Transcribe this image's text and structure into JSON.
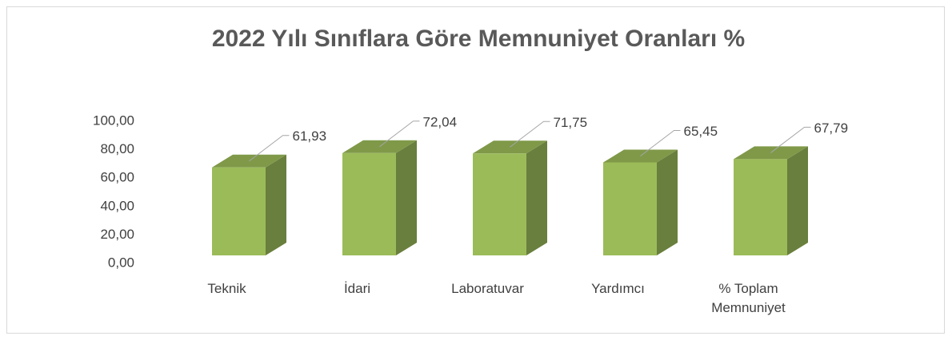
{
  "chart_data": {
    "type": "bar3d",
    "title": "2022 Yılı Sınıflara Göre Memnuniyet Oranları  %",
    "categories": [
      "Teknik",
      "İdari",
      "Laboratuvar",
      "Yardımcı",
      "% Toplam Memnuniyet"
    ],
    "values": [
      61.93,
      72.04,
      71.75,
      65.45,
      67.79
    ],
    "value_labels": [
      "61,93",
      "72,04",
      "71,75",
      "65,45",
      "67,79"
    ],
    "color": "#9bbb59",
    "ylim": [
      0,
      100
    ],
    "yticks": [
      {
        "value": 0,
        "label": "0,00"
      },
      {
        "value": 20,
        "label": "20,00"
      },
      {
        "value": 40,
        "label": "40,00"
      },
      {
        "value": 60,
        "label": "60,00"
      },
      {
        "value": 80,
        "label": "80,00"
      },
      {
        "value": 100,
        "label": "100,00"
      }
    ],
    "grid": false
  }
}
